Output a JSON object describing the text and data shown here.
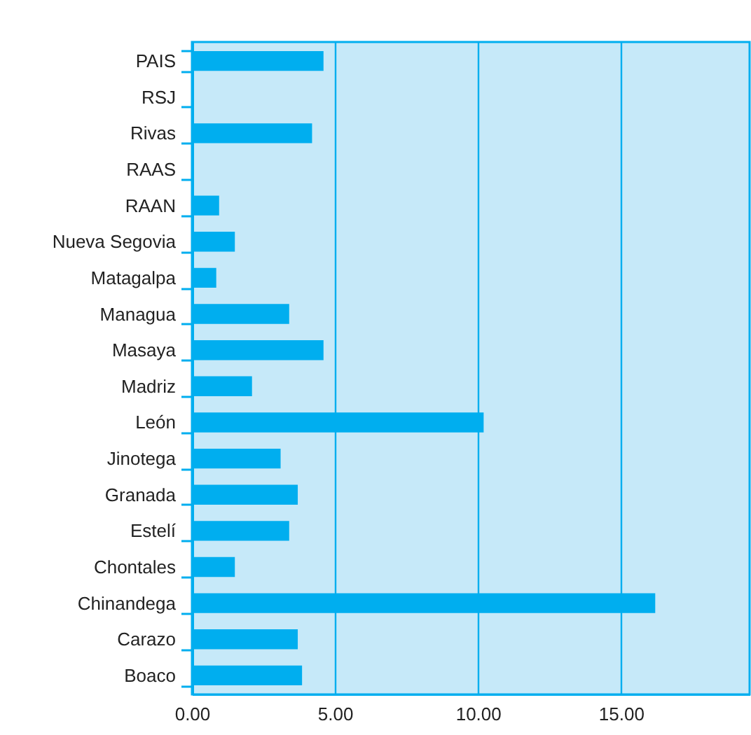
{
  "chart_data": {
    "type": "bar",
    "orientation": "horizontal",
    "categories": [
      "PAIS",
      "RSJ",
      "Rivas",
      "RAAS",
      "RAAN",
      "Nueva Segovia",
      "Matagalpa",
      "Managua",
      "Masaya",
      "Madriz",
      "León",
      "Jinotega",
      "Granada",
      "Estelí",
      "Chontales",
      "Chinandega",
      "Carazo",
      "Boaco"
    ],
    "values": [
      4.6,
      null,
      4.2,
      null,
      0.95,
      1.5,
      0.85,
      3.4,
      4.6,
      2.1,
      10.2,
      3.1,
      3.7,
      3.4,
      1.5,
      16.2,
      3.7,
      3.85
    ],
    "color": "#00aeef",
    "xlim": [
      0,
      19.5
    ],
    "xticks": [
      {
        "value": 0,
        "label": "0.00"
      },
      {
        "value": 5,
        "label": "5.00"
      },
      {
        "value": 10,
        "label": "10.00"
      },
      {
        "value": 15,
        "label": "15.00"
      }
    ],
    "grid": "x"
  }
}
